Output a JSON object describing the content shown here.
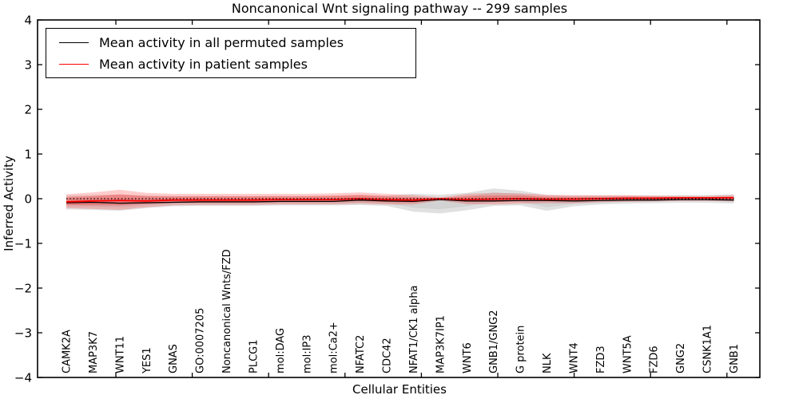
{
  "page": {
    "background": "#ffffff"
  },
  "chart_data": {
    "type": "line",
    "title": "Noncanonical Wnt signaling pathway -- 299 samples",
    "xlabel": "Cellular Entities",
    "ylabel": "Inferred Activity",
    "ylim": [
      -4,
      4
    ],
    "yticks": [
      4,
      3,
      2,
      1,
      0,
      -1,
      -2,
      -3,
      -4
    ],
    "grid": false,
    "legend_position": "upper left",
    "categories": [
      "CAMK2A",
      "MAP3K7",
      "WNT11",
      "YES1",
      "GNAS",
      "GO:0007205",
      "Noncanonical Wnts/FZD",
      "PLCG1",
      "mol:DAG",
      "mol:IP3",
      "mol:Ca2+",
      "NFATC2",
      "CDC42",
      "NFAT1/CK1 alpha",
      "MAP3K7IP1",
      "WNT6",
      "GNB1/GNG2",
      "G protein",
      "NLK",
      "WNT4",
      "FZD3",
      "WNT5A",
      "FZD6",
      "GNG2",
      "CSNK1A1",
      "GNB1"
    ],
    "series": [
      {
        "name": "Mean activity in all permuted samples",
        "role": "permuted-mean",
        "color": "#000000",
        "style": "solid",
        "values": [
          -0.09,
          -0.08,
          -0.1,
          -0.09,
          -0.08,
          -0.07,
          -0.07,
          -0.07,
          -0.06,
          -0.06,
          -0.06,
          -0.03,
          -0.05,
          -0.06,
          -0.02,
          -0.05,
          -0.05,
          -0.04,
          -0.04,
          -0.05,
          -0.04,
          -0.03,
          -0.03,
          -0.02,
          -0.02,
          -0.03
        ]
      },
      {
        "name": "Mean activity in patient samples",
        "role": "patient-mean",
        "color": "#ff0000",
        "style": "solid",
        "values": [
          -0.07,
          -0.05,
          -0.04,
          -0.05,
          -0.03,
          -0.03,
          -0.03,
          -0.03,
          -0.02,
          -0.02,
          -0.02,
          0.0,
          -0.02,
          -0.03,
          0.0,
          -0.02,
          -0.01,
          0.0,
          -0.01,
          -0.01,
          0.0,
          0.01,
          0.01,
          0.02,
          0.02,
          0.02
        ]
      }
    ],
    "bands": [
      {
        "name": "permuted-activity-range",
        "color": "rgba(0,0,0,0.12)",
        "inner_color": "rgba(0,0,0,0.06)",
        "upper": [
          0.07,
          0.08,
          0.09,
          0.07,
          0.06,
          0.06,
          0.06,
          0.06,
          0.06,
          0.06,
          0.07,
          0.08,
          0.07,
          0.11,
          0.09,
          0.13,
          0.23,
          0.18,
          0.08,
          0.07,
          0.07,
          0.07,
          0.07,
          0.08,
          0.08,
          0.1
        ],
        "lower": [
          -0.24,
          -0.25,
          -0.27,
          -0.21,
          -0.17,
          -0.16,
          -0.16,
          -0.16,
          -0.15,
          -0.15,
          -0.15,
          -0.14,
          -0.16,
          -0.29,
          -0.33,
          -0.26,
          -0.16,
          -0.15,
          -0.27,
          -0.17,
          -0.13,
          -0.11,
          -0.1,
          -0.09,
          -0.09,
          -0.11
        ]
      },
      {
        "name": "patient-activity-range",
        "color": "rgba(255,0,0,0.20)",
        "inner_color": "rgba(255,0,0,0.25)",
        "upper": [
          0.1,
          0.14,
          0.2,
          0.13,
          0.11,
          0.11,
          0.11,
          0.11,
          0.11,
          0.11,
          0.12,
          0.14,
          0.11,
          0.08,
          0.03,
          0.11,
          0.13,
          0.12,
          0.09,
          0.08,
          0.08,
          0.08,
          0.07,
          0.06,
          0.06,
          0.08
        ],
        "lower": [
          -0.21,
          -0.23,
          -0.25,
          -0.19,
          -0.15,
          -0.14,
          -0.14,
          -0.14,
          -0.13,
          -0.13,
          -0.13,
          -0.11,
          -0.13,
          -0.13,
          -0.04,
          -0.12,
          -0.13,
          -0.11,
          -0.1,
          -0.1,
          -0.08,
          -0.07,
          -0.06,
          -0.05,
          -0.05,
          -0.06
        ]
      }
    ],
    "baseline": {
      "value": 0,
      "style": "dotted",
      "color": "#000000"
    }
  },
  "legend": {
    "entries": [
      {
        "label": "Mean activity in all permuted samples",
        "color": "#000000"
      },
      {
        "label": "Mean activity in patient samples",
        "color": "#ff0000"
      }
    ]
  }
}
